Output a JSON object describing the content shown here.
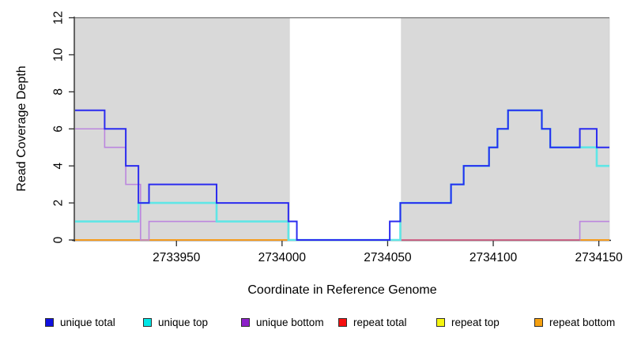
{
  "chart_data": {
    "type": "line",
    "subtype": "step-coverage-plot",
    "title": "",
    "xlabel": "Coordinate in Reference Genome",
    "ylabel": "Read Coverage Depth",
    "xlim": [
      2733902,
      2734155
    ],
    "ylim": [
      0,
      12
    ],
    "grid": false,
    "x_ticks": [
      2733950,
      2734000,
      2734050,
      2734100,
      2734150
    ],
    "y_ticks": [
      0,
      2,
      4,
      6,
      8,
      10,
      12
    ],
    "background_color": "#ffffff",
    "shaded_region_color": "#d9d9d9",
    "shaded_regions": [
      {
        "name": "left-mapped-region",
        "from": 2733902,
        "to": 2734003.5
      },
      {
        "name": "right-mapped-region",
        "from": 2734056.5,
        "to": 2734155
      }
    ],
    "gap_region": {
      "name": "uncovered-gap",
      "from": 2734003.5,
      "to": 2734056.5
    },
    "legend_position": "bottom",
    "series": [
      {
        "name": "unique_total",
        "label": "unique total",
        "color": "#1010e0",
        "line_color": "#2b2bef",
        "line_width": 2,
        "points": [
          [
            2733902,
            7
          ],
          [
            2733916,
            6
          ],
          [
            2733926,
            4
          ],
          [
            2733932,
            2
          ],
          [
            2733937,
            3
          ],
          [
            2733969,
            2
          ],
          [
            2734003,
            1
          ],
          [
            2734007,
            0
          ],
          [
            2734051,
            1
          ],
          [
            2734056,
            2
          ],
          [
            2734080,
            3
          ],
          [
            2734086,
            4
          ],
          [
            2734098,
            5
          ],
          [
            2734102,
            6
          ],
          [
            2734107,
            7
          ],
          [
            2734123,
            6
          ],
          [
            2734127,
            5
          ],
          [
            2734141,
            6
          ],
          [
            2734149,
            5
          ]
        ]
      },
      {
        "name": "unique_top",
        "label": "unique top",
        "color": "#00e6e6",
        "line_color": "#5fe6e6",
        "line_width": 2.6,
        "points": [
          [
            2733902,
            1
          ],
          [
            2733932,
            2
          ],
          [
            2733969,
            1
          ],
          [
            2734003,
            0
          ],
          [
            2734056,
            2
          ],
          [
            2734080,
            3
          ],
          [
            2734086,
            4
          ],
          [
            2734098,
            5
          ],
          [
            2734102,
            6
          ],
          [
            2734107,
            7
          ],
          [
            2734123,
            6
          ],
          [
            2734127,
            5
          ],
          [
            2734149,
            4
          ]
        ]
      },
      {
        "name": "unique_bottom",
        "label": "unique bottom",
        "color": "#8c1fc8",
        "line_color": "#bb86de",
        "line_width": 1.6,
        "points": [
          [
            2733902,
            6
          ],
          [
            2733916,
            5
          ],
          [
            2733926,
            3
          ],
          [
            2733933,
            0
          ],
          [
            2733937,
            1
          ],
          [
            2734003,
            0
          ],
          [
            2734141,
            1
          ]
        ]
      },
      {
        "name": "repeat_total",
        "label": "repeat total",
        "color": "#f50f0f",
        "line_color": "#d4557a",
        "line_width": 1.6,
        "points": [
          [
            2733902,
            0
          ]
        ],
        "visible_from": 2734051,
        "visible_to": 2734141
      },
      {
        "name": "repeat_top",
        "label": "repeat top",
        "color": "#f5f50f",
        "line_color": "#f0e040",
        "line_width": 1.2,
        "points": [
          [
            2733902,
            0
          ]
        ]
      },
      {
        "name": "repeat_bottom",
        "label": "repeat bottom",
        "color": "#f5a00f",
        "line_color": "#f59c20",
        "line_width": 2,
        "points": [
          [
            2733902,
            0
          ]
        ],
        "segments": [
          [
            2733902,
            2734003.5
          ],
          [
            2734141,
            2734155
          ]
        ]
      }
    ],
    "draw_order": [
      "repeat_top",
      "repeat_bottom",
      "unique_bottom",
      "repeat_total",
      "unique_top",
      "unique_total"
    ]
  },
  "labels": {
    "x_axis_title": "Coordinate in Reference Genome",
    "y_axis_title": "Read Coverage Depth"
  }
}
